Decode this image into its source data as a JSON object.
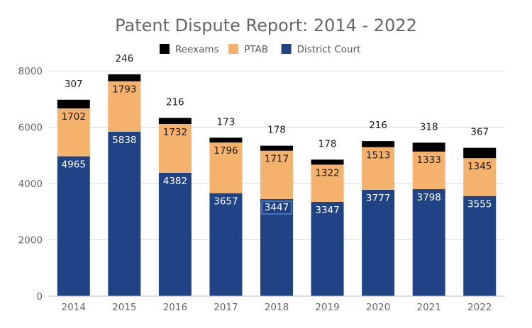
{
  "chart_data": {
    "type": "bar",
    "stacked": true,
    "title": "Patent Dispute Report: 2014 - 2022",
    "xlabel": "",
    "ylabel": "",
    "categories": [
      "2014",
      "2015",
      "2016",
      "2017",
      "2018",
      "2019",
      "2020",
      "2021",
      "2022"
    ],
    "series": [
      {
        "name": "District Court",
        "color": "#1f4385",
        "values": [
          4965,
          5838,
          4382,
          3657,
          3447,
          3347,
          3777,
          3798,
          3555
        ]
      },
      {
        "name": "PTAB",
        "color": "#f5b26c",
        "values": [
          1702,
          1793,
          1732,
          1796,
          1717,
          1322,
          1513,
          1333,
          1345
        ]
      },
      {
        "name": "Reexams",
        "color": "#000000",
        "values": [
          307,
          246,
          216,
          173,
          178,
          178,
          216,
          318,
          367
        ]
      }
    ],
    "legend_order": [
      "Reexams",
      "PTAB",
      "District Court"
    ],
    "legend_position": "top",
    "ylim": [
      0,
      8000
    ],
    "yticks": [
      0,
      2000,
      4000,
      6000,
      8000
    ],
    "grid": true,
    "highlighted_label": {
      "series": "District Court",
      "category": "2018"
    }
  }
}
